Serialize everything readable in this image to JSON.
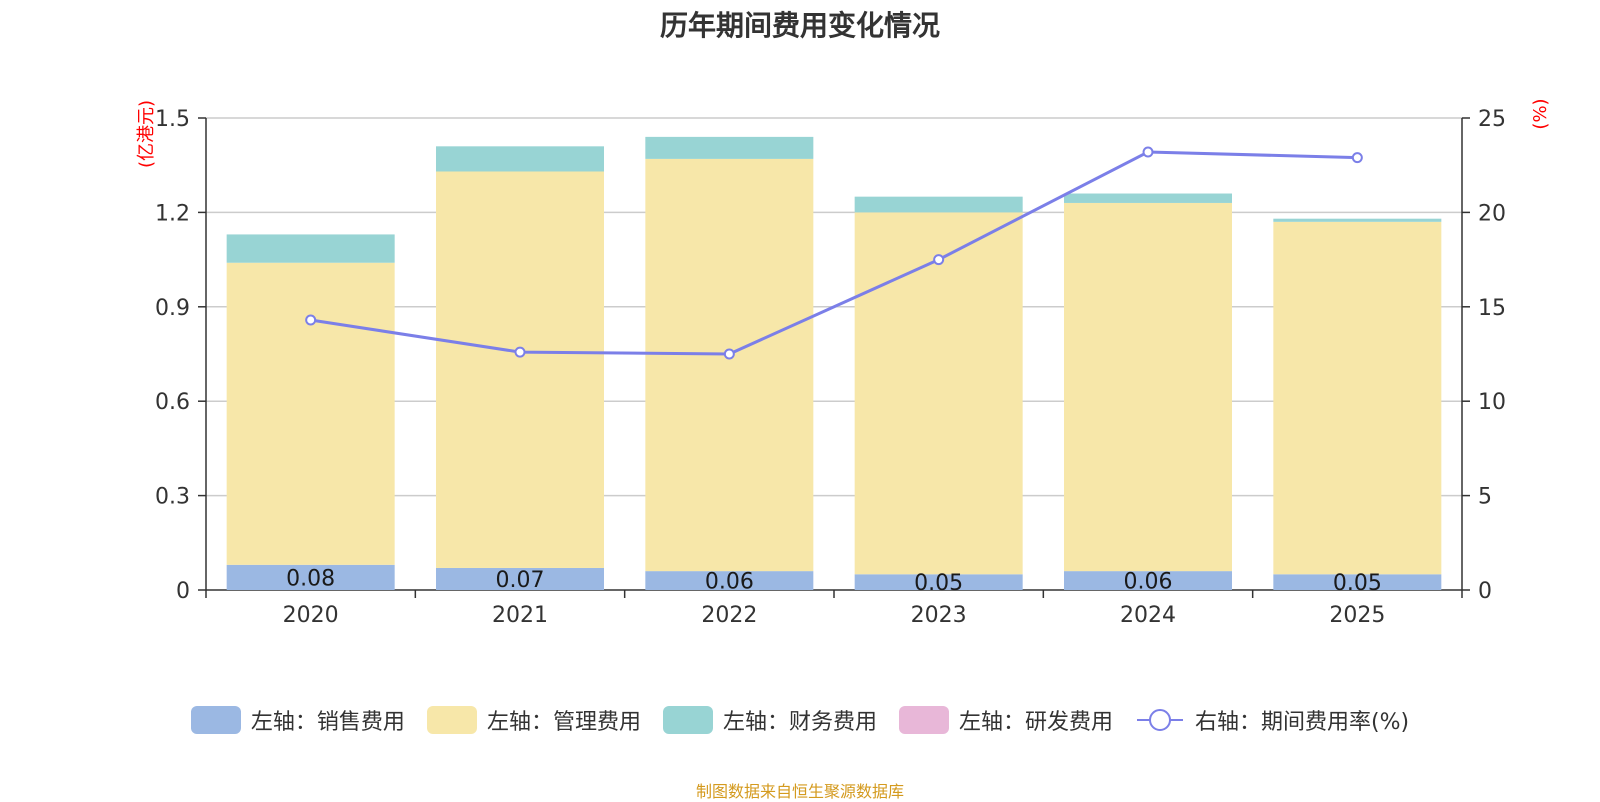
{
  "chart_data": {
    "type": "bar",
    "title": "历年期间费用变化情况",
    "categories": [
      "2020",
      "2021",
      "2022",
      "2023",
      "2024",
      "2025"
    ],
    "stacked": true,
    "left_axis": {
      "label": "(亿港元)",
      "ylim": [
        0,
        1.5
      ],
      "ticks": [
        0,
        0.3,
        0.6,
        0.9,
        1.2,
        1.5
      ],
      "tick_labels": [
        "0",
        "0.3",
        "0.6",
        "0.9",
        "1.2",
        "1.5"
      ]
    },
    "right_axis": {
      "label": "(%)",
      "ylim": [
        0,
        25
      ],
      "ticks": [
        0,
        5,
        10,
        15,
        20,
        25
      ],
      "tick_labels": [
        "0",
        "5",
        "10",
        "15",
        "20",
        "25"
      ]
    },
    "series": [
      {
        "name": "左轴：销售费用",
        "type": "bar",
        "axis": "left",
        "color": "#9bb8e3",
        "values": [
          0.08,
          0.07,
          0.06,
          0.05,
          0.06,
          0.05
        ],
        "labels": [
          "0.08",
          "0.07",
          "0.06",
          "0.05",
          "0.06",
          "0.05"
        ]
      },
      {
        "name": "左轴：管理费用",
        "type": "bar",
        "axis": "left",
        "color": "#f7e7a9",
        "values": [
          0.96,
          1.26,
          1.31,
          1.15,
          1.17,
          1.12
        ]
      },
      {
        "name": "左轴：财务费用",
        "type": "bar",
        "axis": "left",
        "color": "#98d4d4",
        "values": [
          0.09,
          0.08,
          0.07,
          0.05,
          0.03,
          0.01
        ]
      },
      {
        "name": "左轴：研发费用",
        "type": "bar",
        "axis": "left",
        "color": "#e8b7d8",
        "values": [
          0,
          0,
          0,
          0,
          0,
          0
        ]
      },
      {
        "name": "右轴：期间费用率(%)",
        "type": "line",
        "axis": "right",
        "color": "#7b7fe8",
        "values": [
          14.3,
          12.6,
          12.5,
          17.5,
          23.2,
          22.9
        ]
      }
    ],
    "grid": true,
    "legend_position": "bottom"
  },
  "colors": {
    "axis_label": "#ff0000",
    "source_note": "#d49a1e",
    "grid": "#cccccc",
    "axis": "#333333"
  },
  "source_note": "制图数据来自恒生聚源数据库"
}
